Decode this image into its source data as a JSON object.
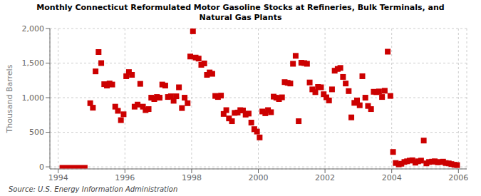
{
  "chart_data": {
    "type": "scatter",
    "title": "Monthly Connecticut Reformulated Motor Gasoline Stocks at Refineries, Bulk Terminals, and\nNatural Gas Plants",
    "ylabel": "Thousand Barrels",
    "annotations": [
      "Source: U.S. Energy Information Administration"
    ],
    "xlim": [
      1993.75,
      2006.25
    ],
    "ylim": [
      -30,
      2000
    ],
    "xticks": [
      1994,
      1996,
      1998,
      2000,
      2002,
      2004,
      2006
    ],
    "yticks": [
      0,
      500,
      {
        "value": 1000,
        "label": "1,000"
      },
      {
        "value": 1500,
        "label": "1,500"
      },
      {
        "value": 2000,
        "label": "2,000"
      }
    ],
    "grid": true,
    "series": [
      {
        "type": "line",
        "color": "#cc0000",
        "x": [
          1994.04,
          1994.88
        ],
        "values": [
          0,
          0
        ]
      },
      {
        "type": "scatter",
        "color": "#cc0000",
        "marker": "square",
        "x": [
          1994.96,
          1995.04,
          1995.12,
          1995.21,
          1995.29,
          1995.38,
          1995.46,
          1995.54,
          1995.62,
          1995.71,
          1995.79,
          1995.88,
          1995.96,
          1996.04,
          1996.12,
          1996.21,
          1996.29,
          1996.38,
          1996.46,
          1996.54,
          1996.62,
          1996.71,
          1996.79,
          1996.88,
          1996.96,
          1997.04,
          1997.12,
          1997.21,
          1997.29,
          1997.38,
          1997.46,
          1997.54,
          1997.62,
          1997.71,
          1997.79,
          1997.88,
          1997.96,
          1998.04,
          1998.12,
          1998.21,
          1998.29,
          1998.38,
          1998.46,
          1998.54,
          1998.62,
          1998.71,
          1998.79,
          1998.88,
          1998.96,
          1999.04,
          1999.12,
          1999.21,
          1999.29,
          1999.38,
          1999.46,
          1999.54,
          1999.62,
          1999.71,
          1999.79,
          1999.88,
          1999.96,
          2000.04,
          2000.12,
          2000.21,
          2000.29,
          2000.38,
          2000.46,
          2000.54,
          2000.62,
          2000.71,
          2000.79,
          2000.88,
          2000.96,
          2001.04,
          2001.12,
          2001.21,
          2001.29,
          2001.38,
          2001.46,
          2001.54,
          2001.62,
          2001.71,
          2001.79,
          2001.88,
          2001.96,
          2002.04,
          2002.12,
          2002.21,
          2002.29,
          2002.38,
          2002.46,
          2002.54,
          2002.62,
          2002.71,
          2002.79,
          2002.88,
          2002.96,
          2003.04,
          2003.12,
          2003.21,
          2003.29,
          2003.38,
          2003.46,
          2003.54,
          2003.62,
          2003.71,
          2003.79,
          2003.88,
          2003.96,
          2004.04,
          2004.12,
          2004.21,
          2004.29,
          2004.38,
          2004.46,
          2004.54,
          2004.62,
          2004.71,
          2004.79,
          2004.88,
          2004.96,
          2005.04,
          2005.12,
          2005.21,
          2005.29,
          2005.38,
          2005.46,
          2005.54,
          2005.62,
          2005.71,
          2005.79,
          2005.88,
          2005.96
        ],
        "values": [
          920,
          855,
          1380,
          1660,
          1500,
          1195,
          1175,
          1205,
          1190,
          870,
          810,
          675,
          760,
          1310,
          1370,
          1330,
          870,
          900,
          1200,
          870,
          820,
          835,
          1000,
          980,
          1010,
          1000,
          1190,
          1175,
          1010,
          1020,
          955,
          1020,
          1150,
          850,
          1000,
          920,
          1595,
          1960,
          1580,
          1565,
          1475,
          1495,
          1330,
          1365,
          1345,
          1025,
          1010,
          1030,
          765,
          820,
          700,
          660,
          780,
          785,
          820,
          815,
          755,
          770,
          640,
          545,
          510,
          425,
          800,
          775,
          820,
          790,
          1015,
          1000,
          980,
          1005,
          1225,
          1215,
          1205,
          1490,
          1605,
          660,
          1505,
          1500,
          1490,
          1220,
          1120,
          1080,
          1155,
          1150,
          1050,
          1005,
          960,
          1120,
          1390,
          1415,
          1430,
          1300,
          1205,
          1095,
          715,
          925,
          960,
          890,
          1310,
          1000,
          880,
          835,
          1085,
          1080,
          1090,
          1010,
          1100,
          1665,
          1025,
          215,
          55,
          35,
          45,
          70,
          80,
          90,
          95,
          60,
          80,
          90,
          380,
          50,
          70,
          75,
          80,
          65,
          70,
          75,
          55,
          50,
          40,
          30,
          25
        ]
      }
    ]
  }
}
